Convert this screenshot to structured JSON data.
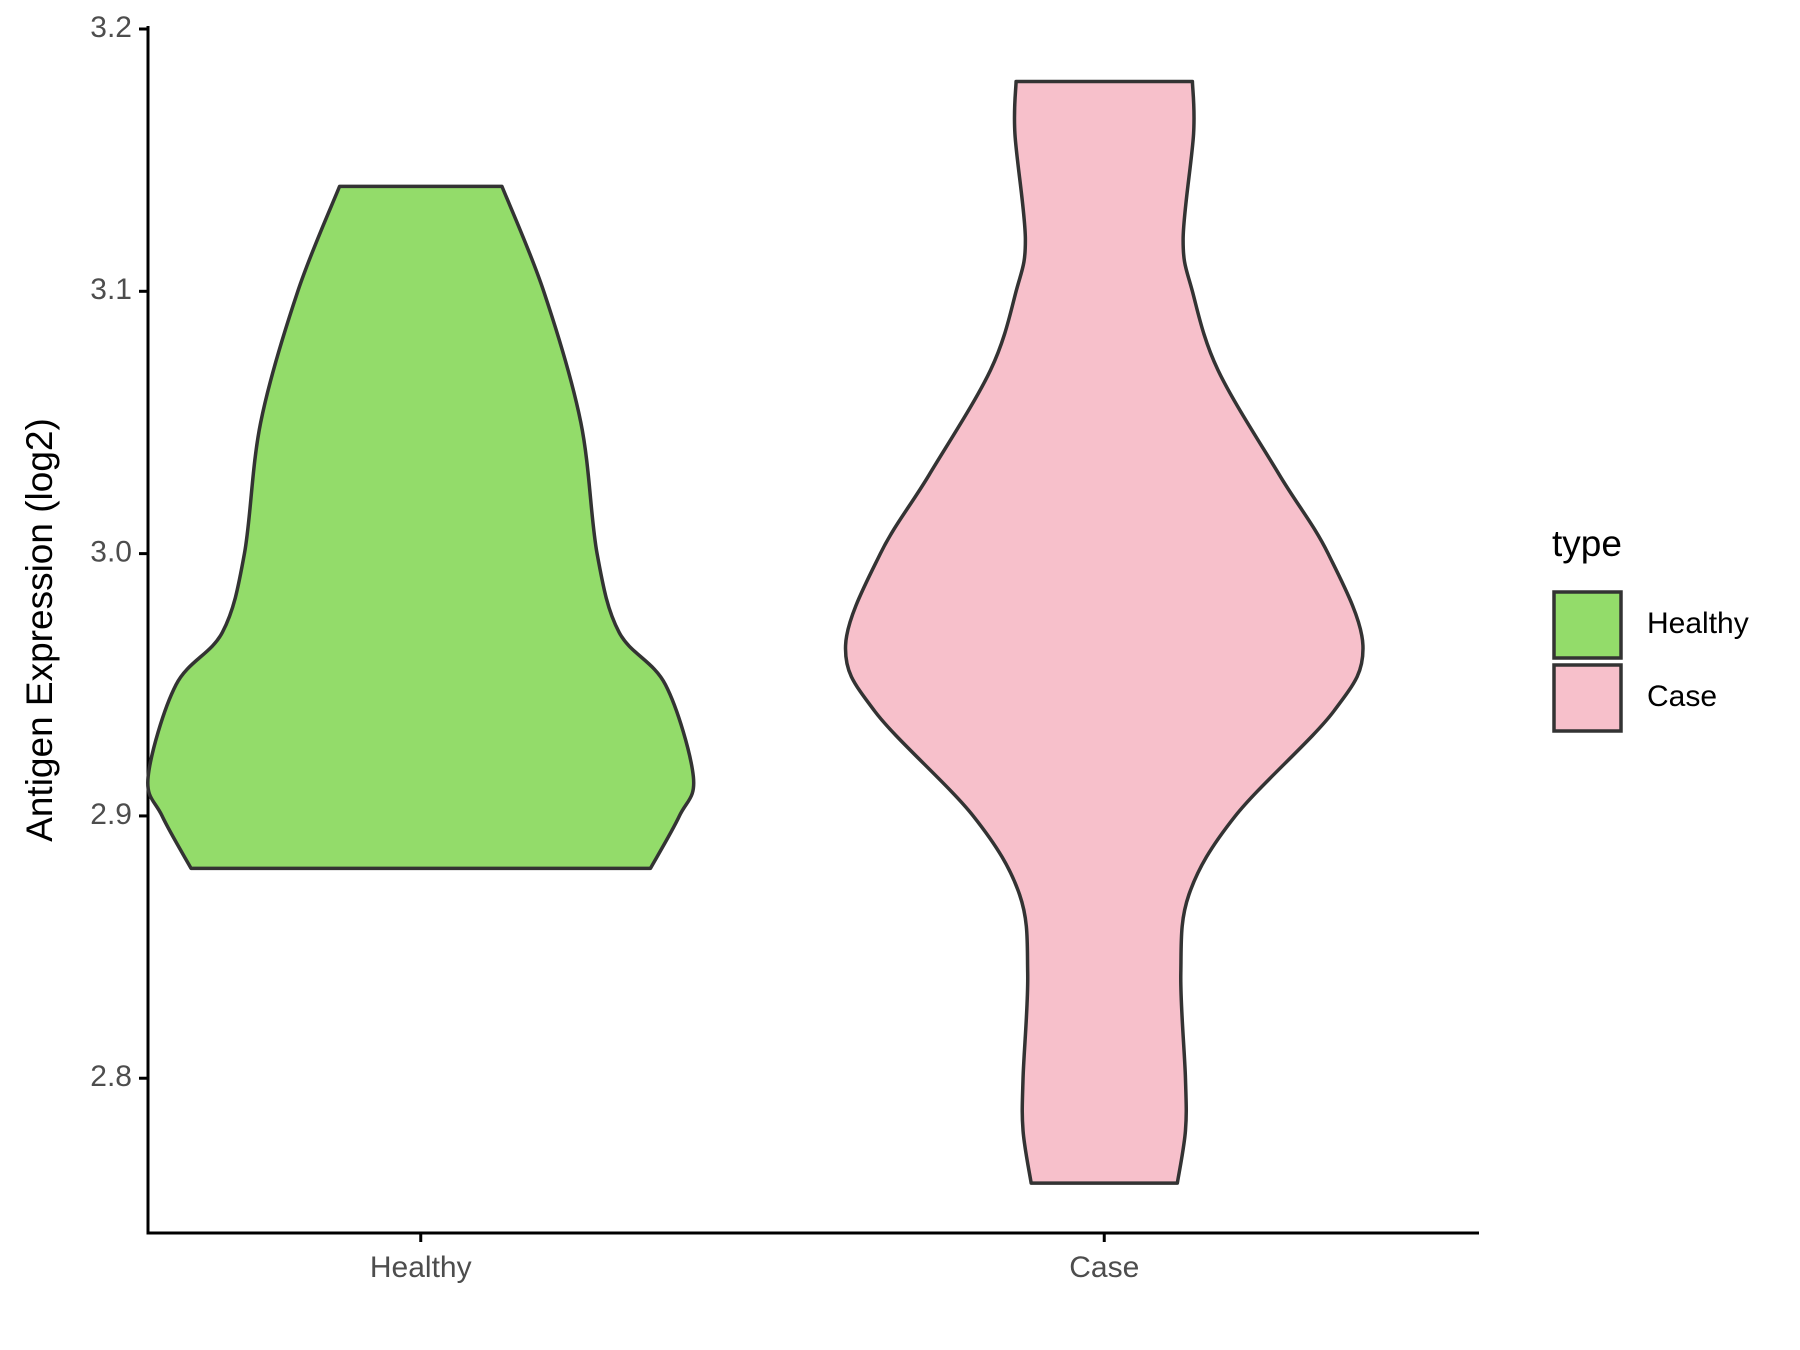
{
  "chart_data": {
    "type": "violin",
    "y_label": "Antigen Expression (log2)",
    "categories": [
      "Healthy",
      "Case"
    ],
    "legend_title": "type",
    "ylim": [
      2.741,
      3.2
    ],
    "yticks": [
      2.8,
      2.9,
      {
        "value": 3,
        "label": "3.0"
      },
      3.1,
      3.2
    ],
    "series": [
      {
        "name": "Healthy",
        "color": "#93dc6a",
        "y": [
          3.14,
          3.1,
          3.05,
          3.0,
          2.97,
          2.95,
          2.915,
          2.9,
          2.88
        ],
        "density": [
          7.0,
          10.6,
          13.8,
          15.2,
          17.1,
          21.1,
          23.5,
          22.3,
          19.8
        ]
      },
      {
        "name": "Case",
        "color": "#f7c0cb",
        "y": [
          3.18,
          3.16,
          3.12,
          3.1,
          3.07,
          3.03,
          3.0,
          2.965,
          2.94,
          2.9,
          2.87,
          2.84,
          2.8,
          2.78,
          2.76
        ],
        "density": [
          7.6,
          7.7,
          6.8,
          7.6,
          9.8,
          15.1,
          19.3,
          22.3,
          19.8,
          11.3,
          7.3,
          6.6,
          7.0,
          7.0,
          6.3
        ]
      }
    ]
  }
}
